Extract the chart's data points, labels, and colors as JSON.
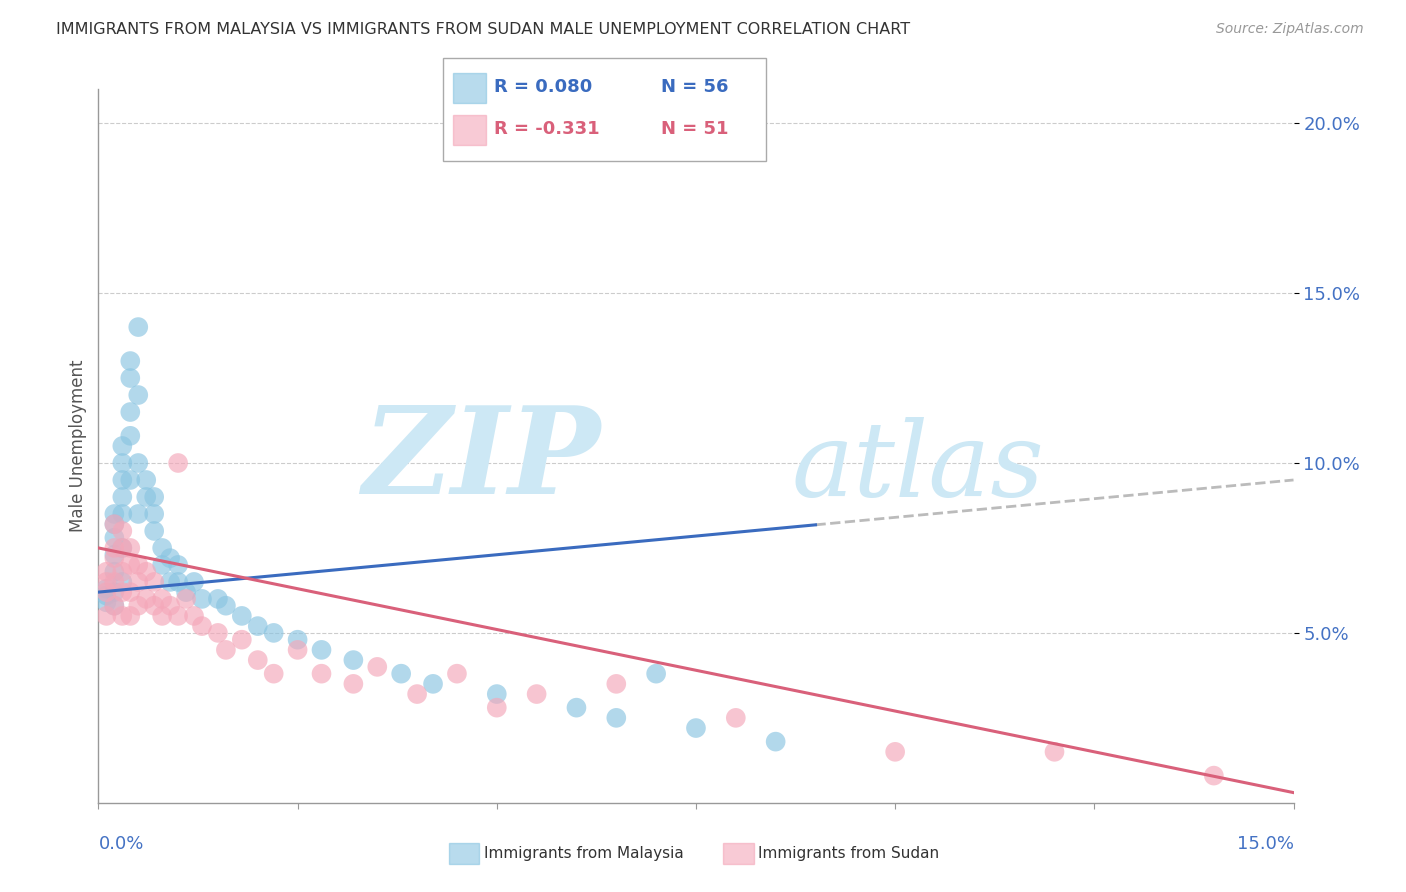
{
  "title": "IMMIGRANTS FROM MALAYSIA VS IMMIGRANTS FROM SUDAN MALE UNEMPLOYMENT CORRELATION CHART",
  "source": "Source: ZipAtlas.com",
  "ylabel": "Male Unemployment",
  "xlim": [
    0.0,
    0.15
  ],
  "ylim": [
    0.0,
    0.21
  ],
  "color_malaysia": "#89c4e1",
  "color_sudan": "#f4a7b9",
  "trendline_malaysia_color": "#3a6bbf",
  "trendline_sudan_color": "#d9607a",
  "trendline_dashed_color": "#bbbbbb",
  "background_color": "#ffffff",
  "watermark_zip": "ZIP",
  "watermark_atlas": "atlas",
  "watermark_color": "#cde8f5",
  "legend_r1": "R = 0.080",
  "legend_n1": "N = 56",
  "legend_r2": "R = -0.331",
  "legend_n2": "N = 51",
  "malaysia_x": [
    0.001,
    0.001,
    0.001,
    0.002,
    0.002,
    0.002,
    0.002,
    0.002,
    0.002,
    0.002,
    0.003,
    0.003,
    0.003,
    0.003,
    0.003,
    0.003,
    0.003,
    0.004,
    0.004,
    0.004,
    0.004,
    0.004,
    0.005,
    0.005,
    0.005,
    0.005,
    0.006,
    0.006,
    0.007,
    0.007,
    0.007,
    0.008,
    0.008,
    0.009,
    0.009,
    0.01,
    0.01,
    0.011,
    0.012,
    0.013,
    0.015,
    0.016,
    0.018,
    0.02,
    0.022,
    0.025,
    0.028,
    0.032,
    0.038,
    0.042,
    0.05,
    0.06,
    0.065,
    0.07,
    0.075,
    0.085
  ],
  "malaysia_y": [
    0.063,
    0.061,
    0.059,
    0.085,
    0.082,
    0.078,
    0.073,
    0.068,
    0.062,
    0.058,
    0.105,
    0.1,
    0.095,
    0.09,
    0.085,
    0.075,
    0.065,
    0.13,
    0.125,
    0.115,
    0.108,
    0.095,
    0.14,
    0.12,
    0.1,
    0.085,
    0.095,
    0.09,
    0.09,
    0.085,
    0.08,
    0.075,
    0.07,
    0.072,
    0.065,
    0.07,
    0.065,
    0.062,
    0.065,
    0.06,
    0.06,
    0.058,
    0.055,
    0.052,
    0.05,
    0.048,
    0.045,
    0.042,
    0.038,
    0.035,
    0.032,
    0.028,
    0.025,
    0.038,
    0.022,
    0.018
  ],
  "sudan_x": [
    0.001,
    0.001,
    0.001,
    0.001,
    0.002,
    0.002,
    0.002,
    0.002,
    0.002,
    0.003,
    0.003,
    0.003,
    0.003,
    0.003,
    0.004,
    0.004,
    0.004,
    0.004,
    0.005,
    0.005,
    0.005,
    0.006,
    0.006,
    0.007,
    0.007,
    0.008,
    0.008,
    0.009,
    0.01,
    0.01,
    0.011,
    0.012,
    0.013,
    0.015,
    0.016,
    0.018,
    0.02,
    0.022,
    0.025,
    0.028,
    0.032,
    0.035,
    0.04,
    0.045,
    0.05,
    0.055,
    0.065,
    0.08,
    0.1,
    0.12,
    0.14
  ],
  "sudan_y": [
    0.068,
    0.065,
    0.062,
    0.055,
    0.082,
    0.075,
    0.072,
    0.065,
    0.058,
    0.08,
    0.075,
    0.068,
    0.062,
    0.055,
    0.075,
    0.07,
    0.062,
    0.055,
    0.07,
    0.065,
    0.058,
    0.068,
    0.06,
    0.065,
    0.058,
    0.06,
    0.055,
    0.058,
    0.1,
    0.055,
    0.06,
    0.055,
    0.052,
    0.05,
    0.045,
    0.048,
    0.042,
    0.038,
    0.045,
    0.038,
    0.035,
    0.04,
    0.032,
    0.038,
    0.028,
    0.032,
    0.035,
    0.025,
    0.015,
    0.015,
    0.008
  ]
}
